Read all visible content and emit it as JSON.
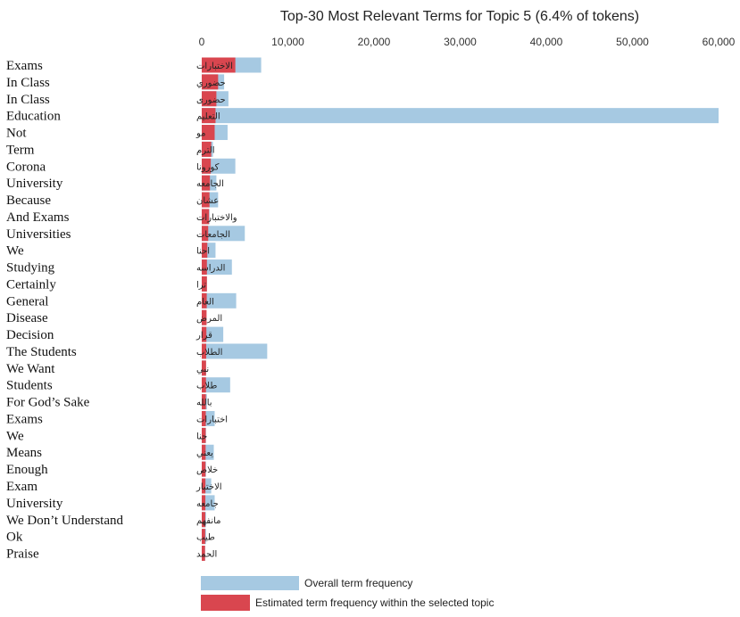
{
  "chart_data": {
    "type": "bar",
    "orientation": "horizontal",
    "title": "Top-30 Most Relevant Terms for Topic 5 (6.4% of tokens)",
    "xlim": [
      0,
      60000
    ],
    "xticks": [
      "0",
      "10,000",
      "20,000",
      "30,000",
      "40,000",
      "50,000",
      "60,000"
    ],
    "xtick_values": [
      0,
      10000,
      20000,
      30000,
      40000,
      50000,
      60000
    ],
    "categories": [
      "الاختبارات",
      "حضوري",
      "حضورى",
      "التعليم",
      "مو",
      "الترم",
      "كورونا",
      "الجامعه",
      "عشان",
      "والاختبارات",
      "الجامعات",
      "احنا",
      "الدراسه",
      "ترا",
      "العام",
      "المرض",
      "قرار",
      "الطلاب",
      "نبي",
      "طلاب",
      "بالله",
      "اختبارات",
      "حنا",
      "يعني",
      "خلاص",
      "الاختبار",
      "جامعه",
      "مانفهم",
      "طيب",
      "الحمد"
    ],
    "translations": [
      "Exams",
      "In Class",
      "In Class",
      "Education",
      "Not",
      "Term",
      "Corona",
      "University",
      "Because",
      "And Exams",
      "Universities",
      "We",
      "Studying",
      "Certainly",
      "General",
      "Disease",
      "Decision",
      "The Students",
      "We Want",
      "Students",
      "For God’s Sake",
      "Exams",
      "We",
      "Means",
      "Enough",
      "Exam",
      "University",
      "We Don’t Understand",
      "Ok",
      "Praise"
    ],
    "series": [
      {
        "name": "Overall term frequency",
        "color": "#a6c9e2",
        "values": [
          6900,
          2600,
          3100,
          60000,
          3000,
          1300,
          3900,
          1700,
          1900,
          900,
          5000,
          1600,
          3500,
          600,
          4000,
          500,
          2500,
          7600,
          500,
          3300,
          600,
          1500,
          500,
          1400,
          500,
          1100,
          1500,
          500,
          500,
          400
        ]
      },
      {
        "name": "Estimated term frequency within the selected topic",
        "color": "#d9464f",
        "values": [
          3900,
          1900,
          1700,
          1600,
          1500,
          1100,
          1050,
          950,
          900,
          850,
          750,
          650,
          600,
          600,
          580,
          560,
          540,
          520,
          500,
          490,
          480,
          470,
          460,
          450,
          440,
          430,
          420,
          410,
          400,
          380
        ]
      }
    ],
    "legend": "bottom",
    "grid": false
  }
}
